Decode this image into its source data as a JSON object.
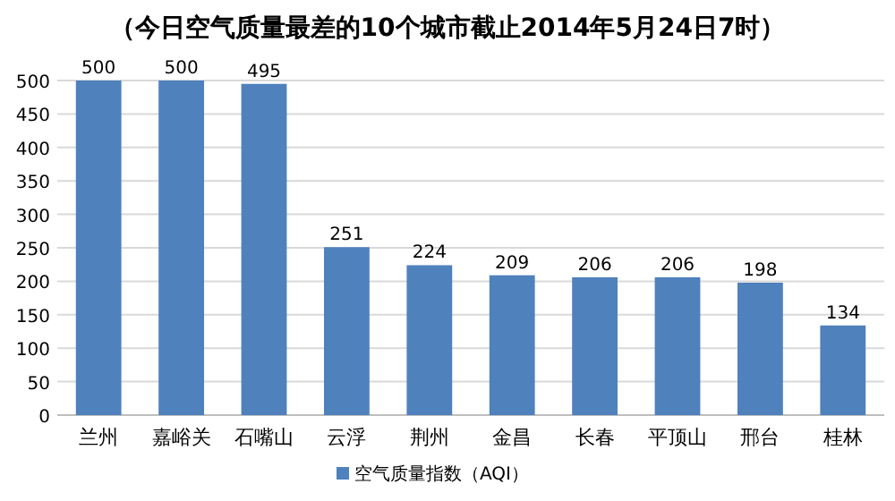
{
  "chart_data": {
    "type": "bar",
    "title": "（今日空气质量最差的10个城市截止2014年5月24日7时）",
    "categories": [
      "兰州",
      "嘉峪关",
      "石嘴山",
      "云浮",
      "荆州",
      "金昌",
      "长春",
      "平顶山",
      "邢台",
      "桂林"
    ],
    "series": [
      {
        "name": "空气质量指数（AQI）",
        "color": "#4f81bd",
        "values": [
          500,
          500,
          495,
          251,
          224,
          209,
          206,
          206,
          198,
          134
        ]
      }
    ],
    "ylim": [
      0,
      500
    ],
    "yticks": [
      0,
      50,
      100,
      150,
      200,
      250,
      300,
      350,
      400,
      450,
      500
    ],
    "grid": "y",
    "legend": "bottom",
    "data_labels": true
  }
}
